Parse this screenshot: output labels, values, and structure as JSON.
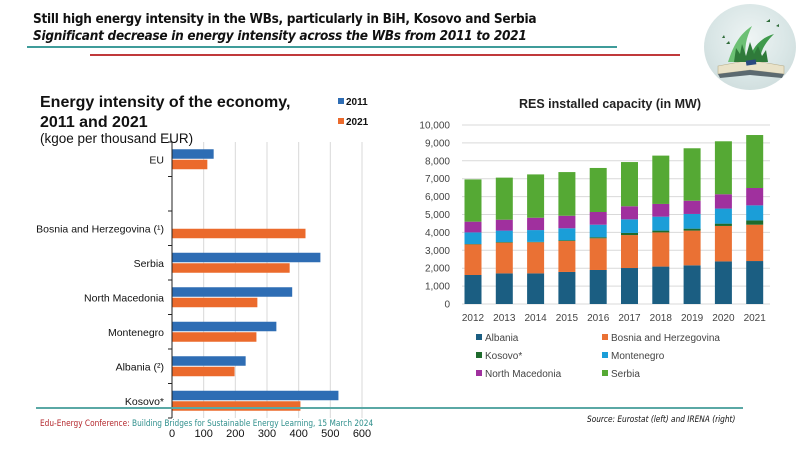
{
  "header": {
    "headline": "Still high energy intensity in the WBs, particularly in BiH, Kosovo and Serbia",
    "subheadline": "Significant decrease in energy intensity across the WBs from 2011 to 2021",
    "logo_icon": "book-with-green-plants-image",
    "colors": {
      "teal_rule": "#3f9c9a",
      "red_rule": "#c0393b"
    }
  },
  "footer": {
    "conference": "Edu-Energy Conference:",
    "event": " Building Bridges for Sustainable Energy Learning, 15 March 2024",
    "source": "Source: Eurostat (left) and IRENA (right)"
  },
  "chart_data": [
    {
      "type": "bar",
      "orientation": "horizontal",
      "title": "Energy intensity of the economy, 2011 and 2021",
      "title_line1": "Energy intensity of the economy,",
      "title_line2": "2011 and 2021",
      "subtitle": "(kgoe per thousand EUR)",
      "categories": [
        "EU",
        "",
        "Bosnia and Herzegovina (¹)",
        "Serbia",
        "North Macedonia",
        "Montenegro",
        "Albania (²)",
        "Kosovo*"
      ],
      "series": [
        {
          "name": "2011",
          "color": "#2e6db4",
          "values": [
            130,
            null,
            null,
            467,
            378,
            328,
            231,
            524
          ]
        },
        {
          "name": "2021",
          "color": "#eb6a2c",
          "values": [
            110,
            null,
            420,
            370,
            268,
            265,
            196,
            404
          ]
        }
      ],
      "xlim": [
        0,
        600
      ],
      "xticks": [
        "0",
        "100",
        "200",
        "300",
        "400",
        "500",
        "600"
      ],
      "grid": true,
      "legend": "top-right",
      "xlabel": "",
      "ylabel": ""
    },
    {
      "type": "bar",
      "stacked": true,
      "title": "RES installed capacity (in MW)",
      "categories": [
        "2012",
        "2013",
        "2014",
        "2015",
        "2016",
        "2017",
        "2018",
        "2019",
        "2020",
        "2021"
      ],
      "series": [
        {
          "name": "Albania",
          "color": "#1b5e82",
          "values": [
            1620,
            1710,
            1710,
            1790,
            1900,
            2010,
            2090,
            2160,
            2380,
            2400
          ]
        },
        {
          "name": "Bosnia and Herzegovina",
          "color": "#ea7134",
          "values": [
            1710,
            1720,
            1740,
            1730,
            1770,
            1840,
            1910,
            1940,
            1980,
            2030
          ]
        },
        {
          "name": "Kosovo*",
          "color": "#1e6b2c",
          "values": [
            20,
            30,
            20,
            40,
            60,
            120,
            100,
            110,
            130,
            240
          ]
        },
        {
          "name": "Montenegro",
          "color": "#1b9ed8",
          "values": [
            650,
            640,
            660,
            670,
            700,
            760,
            780,
            820,
            840,
            840
          ]
        },
        {
          "name": "North Macedonia",
          "color": "#a0309e",
          "values": [
            600,
            610,
            690,
            700,
            710,
            730,
            710,
            740,
            800,
            970
          ]
        },
        {
          "name": "Serbia",
          "color": "#55a934",
          "values": [
            2360,
            2350,
            2420,
            2440,
            2460,
            2470,
            2700,
            2930,
            2960,
            2960
          ]
        }
      ],
      "totals": [
        6960,
        7060,
        7240,
        7370,
        7600,
        7930,
        8290,
        8700,
        9090,
        9440
      ],
      "ylim": [
        0,
        10000
      ],
      "yticks": [
        "0",
        "1,000",
        "2,000",
        "3,000",
        "4,000",
        "5,000",
        "6,000",
        "7,000",
        "8,000",
        "9,000",
        "10,000"
      ],
      "grid": true,
      "legend": "bottom",
      "xlabel": "",
      "ylabel": ""
    }
  ]
}
